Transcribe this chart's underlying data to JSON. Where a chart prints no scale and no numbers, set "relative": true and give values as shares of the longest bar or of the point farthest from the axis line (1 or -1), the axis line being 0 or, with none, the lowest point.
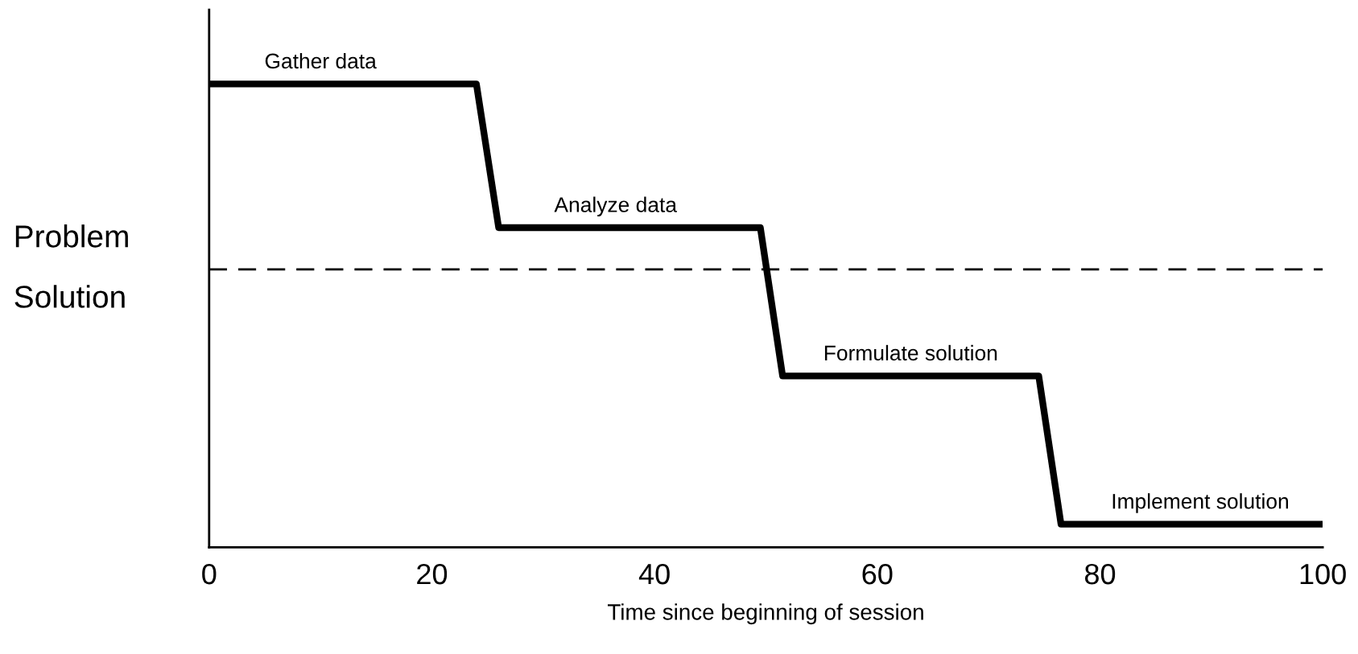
{
  "chart_data": {
    "type": "line",
    "relative": true,
    "xlabel": "Time since beginning of session",
    "x": [
      0,
      24,
      26,
      49.5,
      51.5,
      74.5,
      76.5,
      100
    ],
    "series": [
      {
        "color": "#000000",
        "values": [
          1,
          1,
          0.69,
          0.69,
          0.37,
          0.37,
          0.05,
          0.05
        ]
      }
    ],
    "xlim": [
      0,
      100
    ],
    "xticks": [
      0,
      20,
      40,
      60,
      80,
      100
    ],
    "grid": false,
    "marker": "none",
    "line_style": "solid",
    "ref_lines": [
      {
        "axis": "y",
        "value": 0.6,
        "color": "#000000",
        "line_style": "dashed"
      }
    ],
    "annotations": [
      "Problem",
      "Solution",
      {
        "text": "Gather data",
        "x": 10,
        "y": 1
      },
      {
        "text": "Analyze data",
        "x": 36.5,
        "y": 0.69
      },
      {
        "text": "Formulate solution",
        "x": 63,
        "y": 0.37
      },
      {
        "text": "Implement solution",
        "x": 89,
        "y": 0.05
      }
    ]
  }
}
